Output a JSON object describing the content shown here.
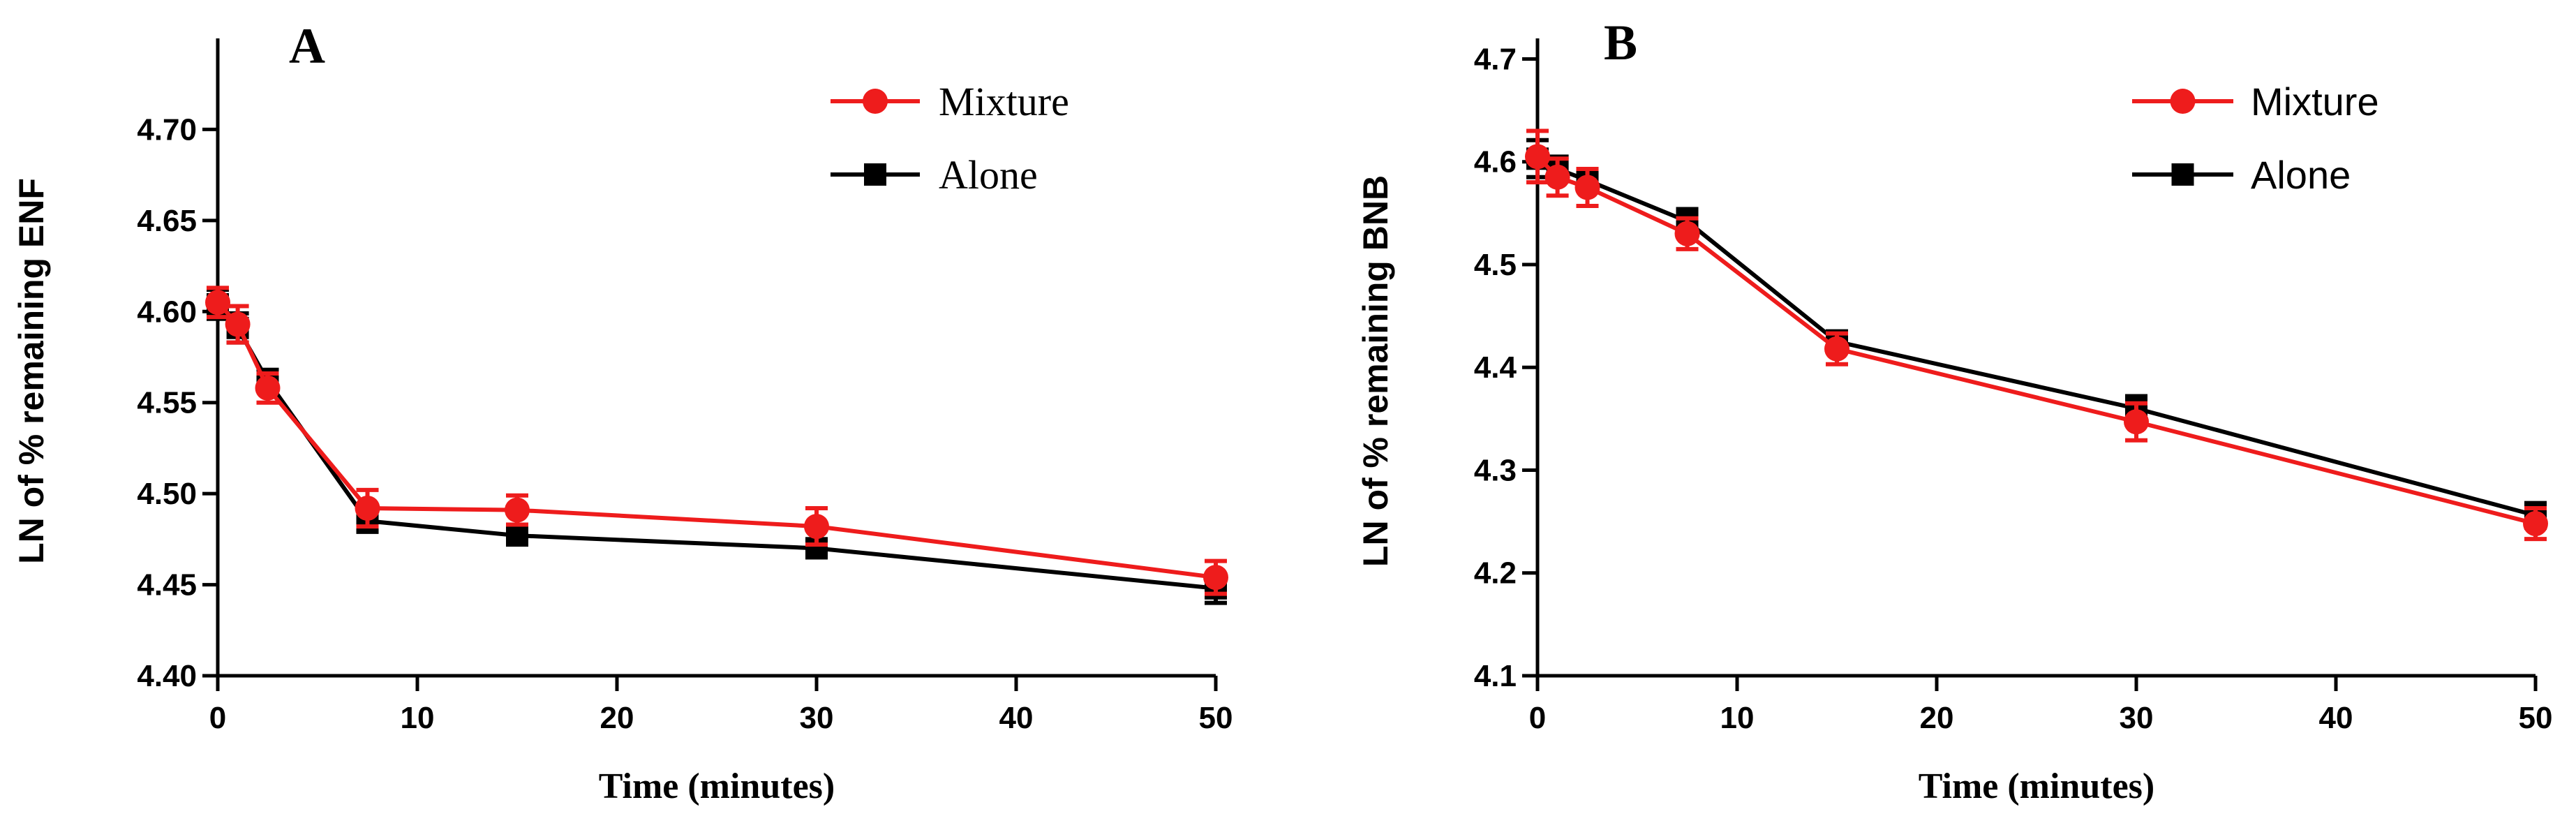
{
  "chart_data": [
    {
      "type": "line",
      "panel_label": "A",
      "xlabel": "Time (minutes)",
      "ylabel": "LN of % remaining ENF",
      "xlim": [
        0,
        50
      ],
      "ylim": [
        4.4,
        4.75
      ],
      "xticks": [
        0,
        10,
        20,
        30,
        40,
        50
      ],
      "xtick_labels": [
        "0",
        "10",
        "20",
        "30",
        "40",
        "50"
      ],
      "yticks": [
        4.4,
        4.45,
        4.5,
        4.55,
        4.6,
        4.65,
        4.7
      ],
      "ytick_labels": [
        "4.40",
        "4.45",
        "4.50",
        "4.55",
        "4.60",
        "4.65",
        "4.70"
      ],
      "legend_position": "top-right",
      "x": [
        0,
        1,
        2.5,
        7.5,
        15,
        30,
        50
      ],
      "series": [
        {
          "name": "Mixture",
          "marker": "circle",
          "color": "#ee1c1c",
          "values": [
            4.605,
            4.593,
            4.558,
            4.492,
            4.491,
            4.482,
            4.454
          ],
          "errors": [
            0.008,
            0.01,
            0.008,
            0.01,
            0.008,
            0.01,
            0.009
          ]
        },
        {
          "name": "Alone",
          "marker": "square",
          "color": "#000000",
          "values": [
            4.604,
            4.591,
            4.562,
            4.485,
            4.477,
            4.47,
            4.448
          ],
          "errors": [
            0.008,
            0.008,
            0.006,
            0.006,
            0.004,
            0.005,
            0.008
          ]
        }
      ]
    },
    {
      "type": "line",
      "panel_label": "B",
      "xlabel": "Time (minutes)",
      "ylabel": "LN of % remaining BNB",
      "xlim": [
        0,
        50
      ],
      "ylim": [
        4.1,
        4.72
      ],
      "xticks": [
        0,
        10,
        20,
        30,
        40,
        50
      ],
      "xtick_labels": [
        "0",
        "10",
        "20",
        "30",
        "40",
        "50"
      ],
      "yticks": [
        4.1,
        4.2,
        4.3,
        4.4,
        4.5,
        4.6,
        4.7
      ],
      "ytick_labels": [
        "4.1",
        "4.2",
        "4.3",
        "4.4",
        "4.5",
        "4.6",
        "4.7"
      ],
      "legend_position": "top-right",
      "x": [
        0,
        1,
        2.5,
        7.5,
        15,
        30,
        50
      ],
      "series": [
        {
          "name": "Mixture",
          "marker": "circle",
          "color": "#ee1c1c",
          "values": [
            4.605,
            4.585,
            4.575,
            4.53,
            4.418,
            4.347,
            4.248
          ],
          "errors": [
            0.025,
            0.018,
            0.018,
            0.015,
            0.015,
            0.018,
            0.015
          ]
        },
        {
          "name": "Alone",
          "marker": "square",
          "color": "#000000",
          "values": [
            4.603,
            4.593,
            4.582,
            4.542,
            4.425,
            4.36,
            4.256
          ],
          "errors": [
            0.018,
            0.012,
            0.01,
            0.012,
            0.01,
            0.012,
            0.012
          ]
        }
      ]
    }
  ]
}
